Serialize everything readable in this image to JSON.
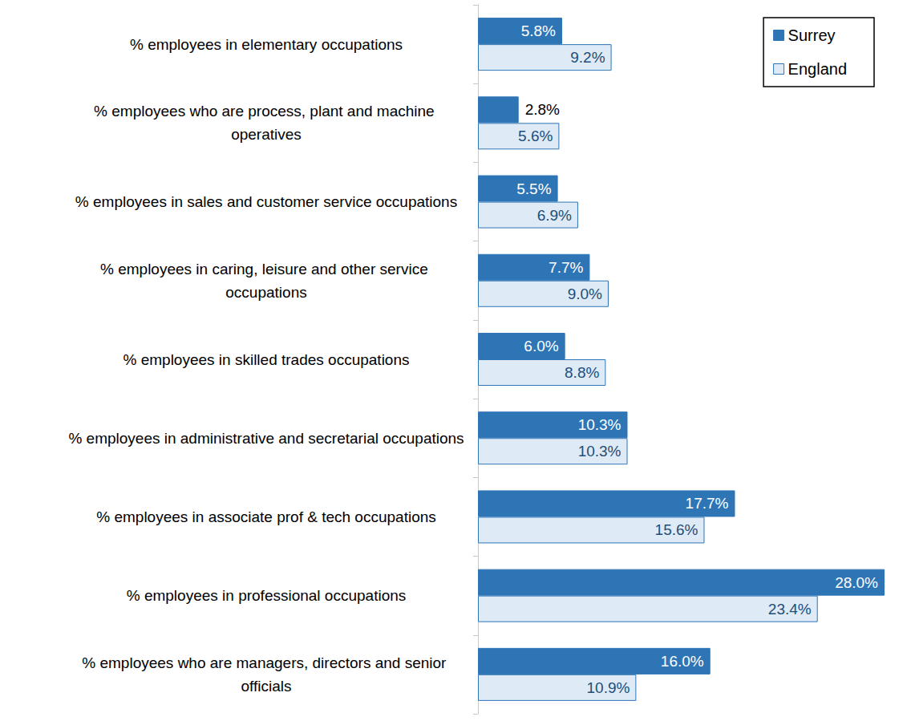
{
  "chart_data": {
    "type": "bar",
    "orientation": "horizontal",
    "categories": [
      "% employees in elementary occupations",
      "% employees who are process, plant and machine operatives",
      "% employees in sales and customer service occupations",
      "% employees in caring, leisure and other service occupations",
      "% employees in skilled trades occupations",
      "% employees in administrative and secretarial occupations",
      "% employees in associate prof & tech occupations",
      "% employees in professional occupations",
      "% employees who are managers, directors and senior officials"
    ],
    "series": [
      {
        "name": "Surrey",
        "color": "#2e75b6",
        "values": [
          5.8,
          2.8,
          5.5,
          7.7,
          6.0,
          10.3,
          17.7,
          28.0,
          16.0
        ],
        "value_labels": [
          "5.8%",
          "2.8%",
          "5.5%",
          "7.7%",
          "6.0%",
          "10.3%",
          "17.7%",
          "28.0%",
          "16.0%"
        ]
      },
      {
        "name": "England",
        "color": "#deebf7",
        "values": [
          9.2,
          5.6,
          6.9,
          9.0,
          8.8,
          10.3,
          15.6,
          23.4,
          10.9
        ],
        "value_labels": [
          "9.2%",
          "5.6%",
          "6.9%",
          "9.0%",
          "8.8%",
          "10.3%",
          "15.6%",
          "23.4%",
          "10.9%"
        ]
      }
    ],
    "xlim": [
      0,
      28
    ],
    "xticks": [
      0,
      28
    ],
    "grid": false,
    "tick_labels": "y",
    "data_labels": true,
    "legend": "top-right"
  }
}
